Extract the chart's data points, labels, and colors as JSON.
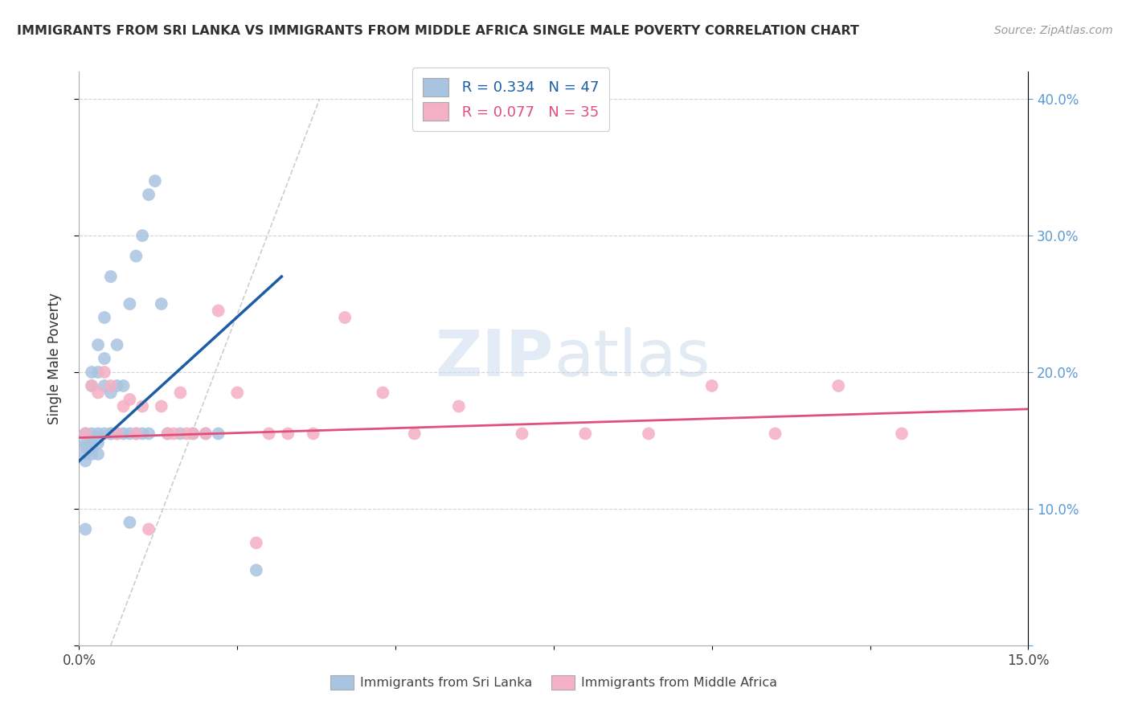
{
  "title": "IMMIGRANTS FROM SRI LANKA VS IMMIGRANTS FROM MIDDLE AFRICA SINGLE MALE POVERTY CORRELATION CHART",
  "source": "Source: ZipAtlas.com",
  "ylabel": "Single Male Poverty",
  "xlim": [
    0.0,
    0.15
  ],
  "ylim": [
    0.0,
    0.42
  ],
  "xticks": [
    0.0,
    0.025,
    0.05,
    0.075,
    0.1,
    0.125,
    0.15
  ],
  "xticklabels": [
    "0.0%",
    "",
    "",
    "",
    "",
    "",
    "15.0%"
  ],
  "yticks_left": [
    0.0,
    0.1,
    0.2,
    0.3,
    0.4
  ],
  "yticks_right": [
    0.0,
    0.1,
    0.2,
    0.3,
    0.4
  ],
  "yticklabels_right": [
    "",
    "10.0%",
    "20.0%",
    "30.0%",
    "40.0%"
  ],
  "sri_lanka_R": 0.334,
  "sri_lanka_N": 47,
  "middle_africa_R": 0.077,
  "middle_africa_N": 35,
  "sri_lanka_color": "#a8c4e0",
  "sri_lanka_line_color": "#1b5ea6",
  "middle_africa_color": "#f4b0c4",
  "middle_africa_line_color": "#e0507a",
  "diagonal_color": "#c8c8c8",
  "background_color": "#ffffff",
  "grid_color": "#d4d4d4",
  "title_color": "#303030",
  "right_axis_color": "#5b9bd5",
  "watermark_color": "#d0dff0",
  "sri_lanka_x": [
    0.001,
    0.001,
    0.001,
    0.001,
    0.001,
    0.001,
    0.002,
    0.002,
    0.002,
    0.002,
    0.002,
    0.002,
    0.003,
    0.003,
    0.003,
    0.003,
    0.003,
    0.004,
    0.004,
    0.004,
    0.004,
    0.005,
    0.005,
    0.005,
    0.005,
    0.006,
    0.006,
    0.006,
    0.007,
    0.007,
    0.008,
    0.008,
    0.008,
    0.009,
    0.009,
    0.01,
    0.01,
    0.011,
    0.011,
    0.012,
    0.013,
    0.014,
    0.016,
    0.018,
    0.02,
    0.022,
    0.028
  ],
  "sri_lanka_y": [
    0.155,
    0.148,
    0.145,
    0.14,
    0.135,
    0.085,
    0.155,
    0.148,
    0.145,
    0.14,
    0.19,
    0.2,
    0.155,
    0.148,
    0.14,
    0.2,
    0.22,
    0.155,
    0.19,
    0.21,
    0.24,
    0.155,
    0.155,
    0.185,
    0.27,
    0.155,
    0.19,
    0.22,
    0.19,
    0.155,
    0.25,
    0.155,
    0.09,
    0.155,
    0.285,
    0.155,
    0.3,
    0.155,
    0.33,
    0.34,
    0.25,
    0.155,
    0.155,
    0.155,
    0.155,
    0.155,
    0.055
  ],
  "middle_africa_x": [
    0.001,
    0.002,
    0.003,
    0.004,
    0.005,
    0.006,
    0.007,
    0.008,
    0.009,
    0.01,
    0.011,
    0.013,
    0.014,
    0.015,
    0.016,
    0.017,
    0.018,
    0.02,
    0.022,
    0.025,
    0.028,
    0.03,
    0.033,
    0.037,
    0.042,
    0.048,
    0.053,
    0.06,
    0.07,
    0.08,
    0.09,
    0.1,
    0.11,
    0.12,
    0.13
  ],
  "middle_africa_y": [
    0.155,
    0.19,
    0.185,
    0.2,
    0.19,
    0.155,
    0.175,
    0.18,
    0.155,
    0.175,
    0.085,
    0.175,
    0.155,
    0.155,
    0.185,
    0.155,
    0.155,
    0.155,
    0.245,
    0.185,
    0.075,
    0.155,
    0.155,
    0.155,
    0.24,
    0.185,
    0.155,
    0.175,
    0.155,
    0.155,
    0.155,
    0.19,
    0.155,
    0.19,
    0.155
  ]
}
